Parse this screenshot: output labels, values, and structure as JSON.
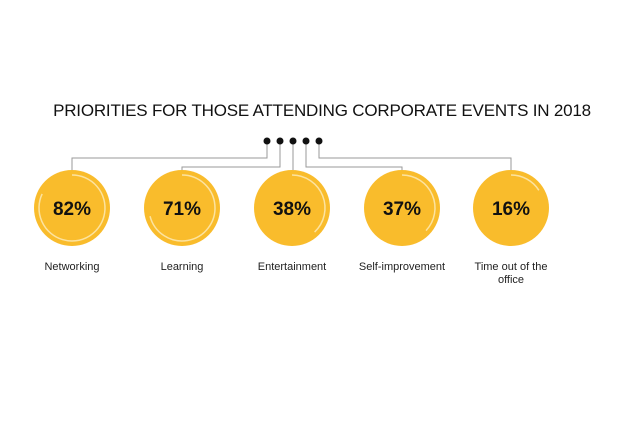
{
  "chart_data": {
    "type": "pie",
    "title": "PRIORITIES FOR THOSE ATTENDING CORPORATE EVENTS IN 2018",
    "categories": [
      "Networking",
      "Learning",
      "Entertainment",
      "Self-improvement",
      "Time out of the office"
    ],
    "values": [
      82,
      71,
      38,
      37,
      16
    ],
    "value_labels": [
      "82%",
      "71%",
      "38%",
      "37%",
      "16%"
    ],
    "unit": "%"
  },
  "colors": {
    "circle": "#F9BC2C",
    "ring": "#FCE3A0",
    "line": "#9a9a9a",
    "dot": "#111111"
  }
}
